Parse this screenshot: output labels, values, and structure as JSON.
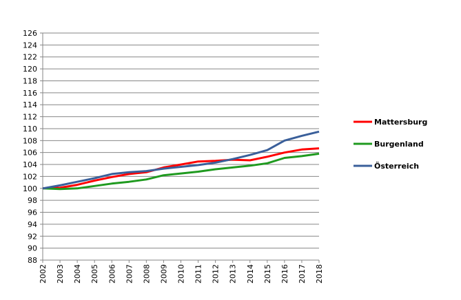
{
  "chart_data": {
    "type": "line",
    "title": "",
    "xlabel": "",
    "ylabel": "",
    "x": [
      "2002",
      "2003",
      "2004",
      "2005",
      "2006",
      "2007",
      "2008",
      "2009",
      "2010",
      "2011",
      "2012",
      "2013",
      "2014",
      "2015",
      "2016",
      "2017",
      "2018"
    ],
    "ylim": [
      88,
      126
    ],
    "ytick_step": 2,
    "grid": true,
    "legend_position": "right",
    "series": [
      {
        "name": "Mattersburg",
        "color": "#ff0000",
        "values": [
          100,
          100.1,
          100.6,
          101.3,
          101.9,
          102.4,
          102.7,
          103.5,
          104.0,
          104.5,
          104.6,
          104.8,
          104.7,
          105.3,
          106.0,
          106.5,
          106.7
        ]
      },
      {
        "name": "Burgenland",
        "color": "#1f9a1f",
        "values": [
          100,
          99.9,
          100.0,
          100.4,
          100.8,
          101.1,
          101.5,
          102.2,
          102.5,
          102.8,
          103.2,
          103.5,
          103.8,
          104.2,
          105.1,
          105.4,
          105.8
        ]
      },
      {
        "name": "Österreich",
        "color": "#3a5f9a",
        "values": [
          100,
          100.5,
          101.1,
          101.7,
          102.4,
          102.7,
          102.9,
          103.3,
          103.6,
          103.9,
          104.3,
          104.9,
          105.6,
          106.4,
          108.0,
          108.8,
          109.5
        ]
      }
    ]
  }
}
